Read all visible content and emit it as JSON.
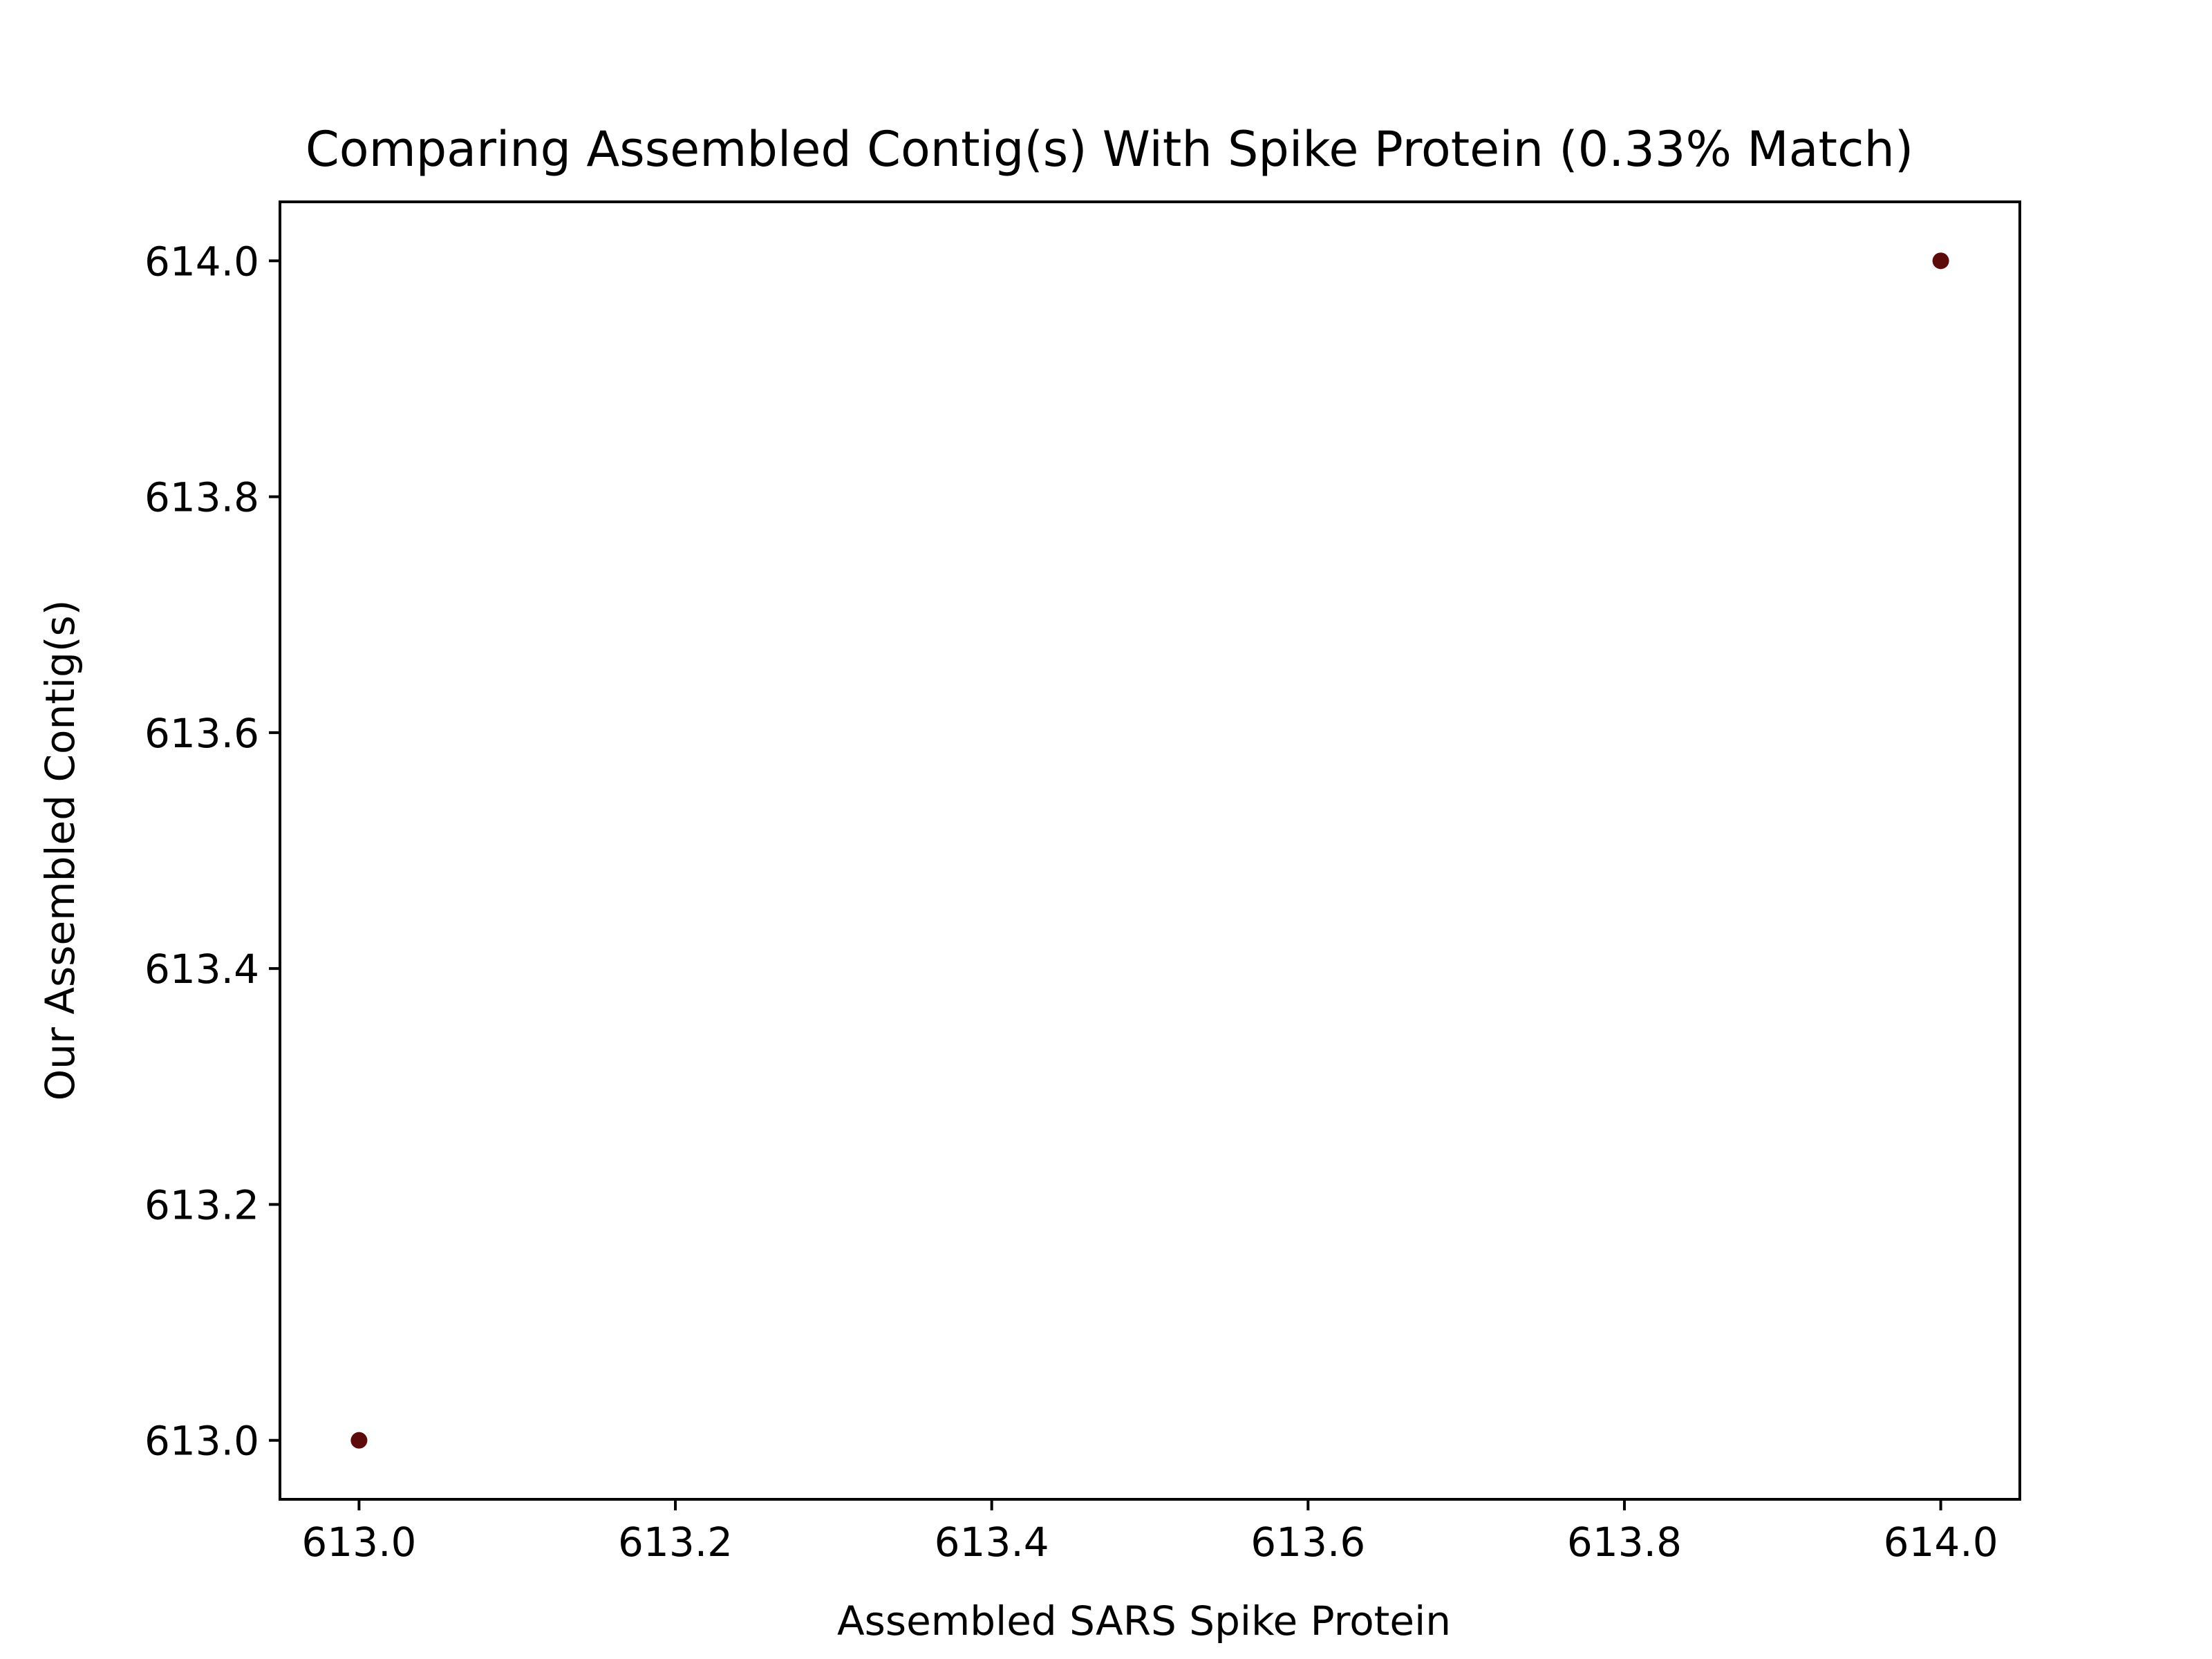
{
  "chart_data": {
    "type": "scatter",
    "title": "Comparing Assembled Contig(s) With Spike Protein (0.33% Match)",
    "xlabel": "Assembled SARS Spike Protein",
    "ylabel": "Our Assembled Contig(s)",
    "xlim": [
      612.95,
      614.05
    ],
    "ylim": [
      612.95,
      614.05
    ],
    "xticks": [
      613.0,
      613.2,
      613.4,
      613.6,
      613.8,
      614.0
    ],
    "xtick_labels": [
      "613.0",
      "613.2",
      "613.4",
      "613.6",
      "613.8",
      "614.0"
    ],
    "yticks": [
      613.0,
      613.2,
      613.4,
      613.6,
      613.8,
      614.0
    ],
    "ytick_labels": [
      "613.0",
      "613.2",
      "613.4",
      "613.6",
      "613.8",
      "614.0"
    ],
    "grid": false,
    "marker_color": "#5c0a0a",
    "series": [
      {
        "points": [
          {
            "x": 613.0,
            "y": 613.0
          },
          {
            "x": 614.0,
            "y": 614.0
          }
        ]
      }
    ]
  }
}
